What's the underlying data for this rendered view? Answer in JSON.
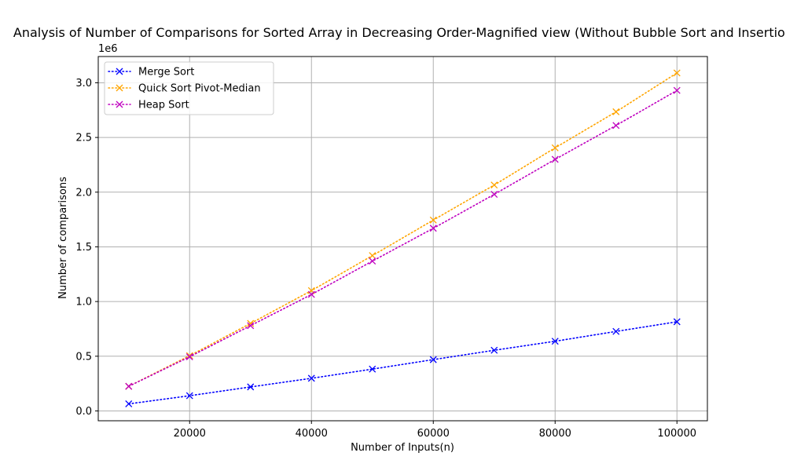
{
  "chart_data": {
    "type": "line",
    "title": "Analysis of Number of Comparisons for Sorted Array in Decreasing Order-Magnified view (Without Bubble Sort and Insertion Sort)",
    "xlabel": "Number of Inputs(n)",
    "ylabel": "Number of comparisons",
    "y_offset_label": "1e6",
    "x": [
      10000,
      20000,
      30000,
      40000,
      50000,
      60000,
      70000,
      80000,
      90000,
      100000
    ],
    "xlim": [
      5000,
      105000
    ],
    "ylim": [
      -90000,
      3240000
    ],
    "x_ticks": [
      20000,
      40000,
      60000,
      80000,
      100000
    ],
    "x_tick_labels": [
      "20000",
      "40000",
      "60000",
      "80000",
      "100000"
    ],
    "y_ticks": [
      0,
      500000,
      1000000,
      1500000,
      2000000,
      2500000,
      3000000
    ],
    "y_tick_labels": [
      "0.0",
      "0.5",
      "1.0",
      "1.5",
      "2.0",
      "2.5",
      "3.0"
    ],
    "grid": true,
    "legend_position": "top-left",
    "series": [
      {
        "name": "Merge Sort",
        "color": "#0000ff",
        "marker": "x",
        "line_style": "dotted",
        "values": [
          64608,
          139216,
          219504,
          298432,
          382512,
          469008,
          554816,
          636864,
          726704,
          815024
        ]
      },
      {
        "name": "Quick Sort Pivot-Median",
        "color": "#ffa500",
        "marker": "x",
        "line_style": "dotted",
        "values": [
          225000,
          505000,
          800000,
          1100000,
          1420000,
          1745000,
          2065000,
          2405000,
          2735000,
          3090000
        ]
      },
      {
        "name": "Heap Sort",
        "color": "#bf00bf",
        "marker": "x",
        "line_style": "dotted",
        "values": [
          225000,
          495000,
          780000,
          1065000,
          1370000,
          1670000,
          1980000,
          2300000,
          2610000,
          2930000
        ]
      }
    ]
  }
}
